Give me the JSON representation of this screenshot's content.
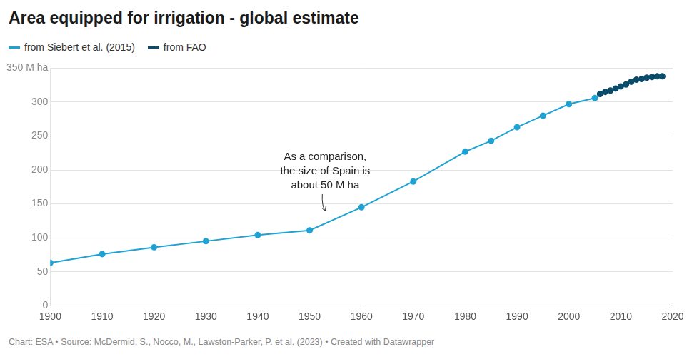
{
  "chart_data": {
    "type": "line",
    "title": "Area equipped for irrigation - global estimate",
    "source": "Chart: ESA • Source: McDermid, S., Nocco, M., Lawston-Parker, P. et al. (2023) • Created with Datawrapper",
    "series": [
      {
        "name": "from Siebert et al. (2015)",
        "color": "#1fa2d3",
        "marker": "circle",
        "line_style": "solid",
        "x": [
          1900,
          1910,
          1920,
          1930,
          1940,
          1950,
          1960,
          1970,
          1980,
          1985,
          1990,
          1995,
          2000,
          2005
        ],
        "values": [
          63,
          76,
          86,
          95,
          104,
          111,
          145,
          183,
          227,
          243,
          263,
          280,
          297,
          306
        ]
      },
      {
        "name": "from FAO",
        "color": "#0b4c6b",
        "marker": "circle",
        "line_style": "solid",
        "x": [
          2006,
          2007,
          2008,
          2009,
          2010,
          2011,
          2012,
          2013,
          2014,
          2015,
          2016,
          2017,
          2018
        ],
        "values": [
          312,
          315,
          317,
          320,
          323,
          326,
          330,
          333,
          334,
          336,
          337,
          338,
          338
        ]
      }
    ],
    "annotations": [
      {
        "text": "As a comparison,\nthe size of Spain is\nabout 50 M ha",
        "x": 1953,
        "y": 137
      }
    ],
    "xlim": [
      1900,
      2020
    ],
    "xticks": [
      1900,
      1910,
      1920,
      1930,
      1940,
      1950,
      1960,
      1970,
      1980,
      1990,
      2000,
      2010,
      2020
    ],
    "ylim": [
      0,
      350
    ],
    "yticks": [
      0,
      50,
      100,
      150,
      200,
      250,
      300,
      {
        "value": 350,
        "label": "350 M ha"
      }
    ],
    "grid": true
  }
}
